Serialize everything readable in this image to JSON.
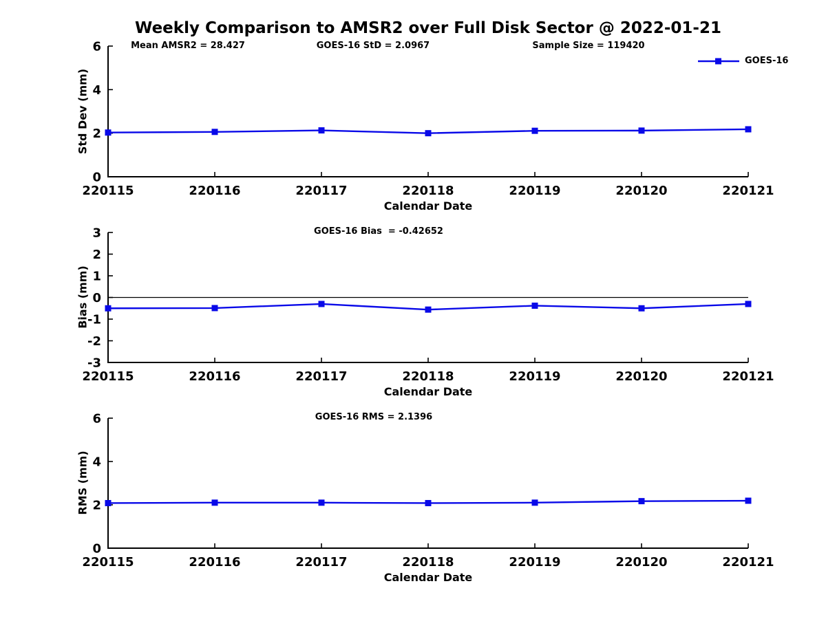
{
  "figure": {
    "title": "Weekly Comparison to AMSR2 over Full Disk Sector @ 2022-01-21"
  },
  "annotations": {
    "mean_amsr2": "Mean AMSR2 = 28.427",
    "goes_std": "GOES-16 StD = 2.0967",
    "sample_size": "Sample Size = 119420",
    "goes_bias": "GOES-16 Bias  = -0.42652",
    "goes_rms": "GOES-16 RMS = 2.1396"
  },
  "colors": {
    "series_blue": "#0909e8",
    "axis_black": "#000000"
  },
  "legend": {
    "position": "top-right",
    "label": "GOES-16"
  },
  "chart_data": [
    {
      "type": "line",
      "name": "std_dev",
      "categories": [
        "220115",
        "220116",
        "220117",
        "220118",
        "220119",
        "220120",
        "220121"
      ],
      "series": [
        {
          "name": "GOES-16",
          "values": [
            2.03,
            2.06,
            2.13,
            2.0,
            2.11,
            2.12,
            2.18
          ]
        }
      ],
      "xlabel": "Calendar Date",
      "ylabel": "Std Dev (mm)",
      "ylim": [
        0,
        6
      ],
      "yticks": [
        0,
        2,
        4,
        6
      ],
      "zero_line": false,
      "grid": false,
      "marker": "square"
    },
    {
      "type": "line",
      "name": "bias",
      "categories": [
        "220115",
        "220116",
        "220117",
        "220118",
        "220119",
        "220120",
        "220121"
      ],
      "series": [
        {
          "name": "GOES-16",
          "values": [
            -0.5,
            -0.49,
            -0.3,
            -0.56,
            -0.38,
            -0.5,
            -0.3
          ]
        }
      ],
      "xlabel": "Calendar Date",
      "ylabel": "Bias (mm)",
      "ylim": [
        -3,
        3
      ],
      "yticks": [
        -3,
        -2,
        -1,
        0,
        1,
        2,
        3
      ],
      "zero_line": true,
      "grid": false,
      "marker": "square"
    },
    {
      "type": "line",
      "name": "rms",
      "categories": [
        "220115",
        "220116",
        "220117",
        "220118",
        "220119",
        "220120",
        "220121"
      ],
      "series": [
        {
          "name": "GOES-16",
          "values": [
            2.08,
            2.1,
            2.1,
            2.08,
            2.1,
            2.17,
            2.19
          ]
        }
      ],
      "xlabel": "Calendar Date",
      "ylabel": "RMS (mm)",
      "ylim": [
        0,
        6
      ],
      "yticks": [
        0,
        2,
        4,
        6
      ],
      "zero_line": false,
      "grid": false,
      "marker": "square"
    }
  ]
}
